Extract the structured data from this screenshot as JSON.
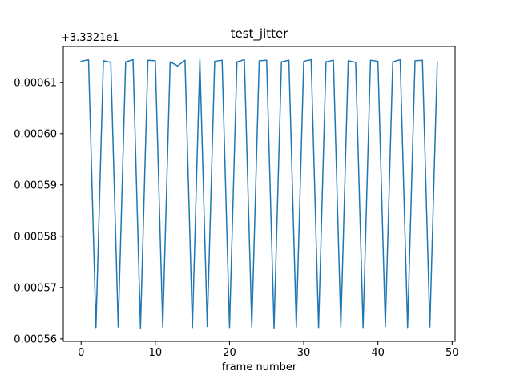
{
  "chart_data": {
    "type": "line",
    "title": "test_jitter",
    "xlabel": "frame number",
    "y_offset_text": "+3.3321e1",
    "y_offset_value": 33.321,
    "line_color": "#1f77b4",
    "grid": false,
    "legend": null,
    "xlim": [
      -2.4,
      50.4
    ],
    "ylim": [
      0.0005595,
      0.000617
    ],
    "xticks": [
      0,
      10,
      20,
      30,
      40,
      50
    ],
    "xtick_labels": [
      "0",
      "10",
      "20",
      "30",
      "40",
      "50"
    ],
    "yticks": [
      0.00056,
      0.00057,
      0.00058,
      0.00059,
      0.0006,
      0.00061
    ],
    "ytick_labels": [
      "0.00056",
      "0.00057",
      "0.00058",
      "0.00059",
      "0.00060",
      "0.00061"
    ],
    "x": [
      0,
      1,
      2,
      3,
      4,
      5,
      6,
      7,
      8,
      9,
      10,
      11,
      12,
      13,
      14,
      15,
      16,
      17,
      18,
      19,
      20,
      21,
      22,
      23,
      24,
      25,
      26,
      27,
      28,
      29,
      30,
      31,
      32,
      33,
      34,
      35,
      36,
      37,
      38,
      39,
      40,
      41,
      42,
      43,
      44,
      45,
      46,
      47,
      48
    ],
    "y": [
      0.0006141,
      0.0006144,
      0.0005622,
      0.0006142,
      0.0006139,
      0.0005623,
      0.000614,
      0.0006144,
      0.0005621,
      0.0006143,
      0.0006142,
      0.0005623,
      0.000614,
      0.0006132,
      0.0006143,
      0.0005622,
      0.0006144,
      0.0005624,
      0.0006141,
      0.0006143,
      0.0005622,
      0.000614,
      0.0006144,
      0.0005623,
      0.0006142,
      0.0006143,
      0.0005621,
      0.000614,
      0.0006143,
      0.0005623,
      0.0006141,
      0.0006144,
      0.0005622,
      0.000614,
      0.0006143,
      0.0005623,
      0.0006142,
      0.0006139,
      0.0005622,
      0.0006143,
      0.0006141,
      0.0005624,
      0.000614,
      0.0006144,
      0.0005622,
      0.0006142,
      0.0006143,
      0.0005623,
      0.0006138
    ]
  }
}
